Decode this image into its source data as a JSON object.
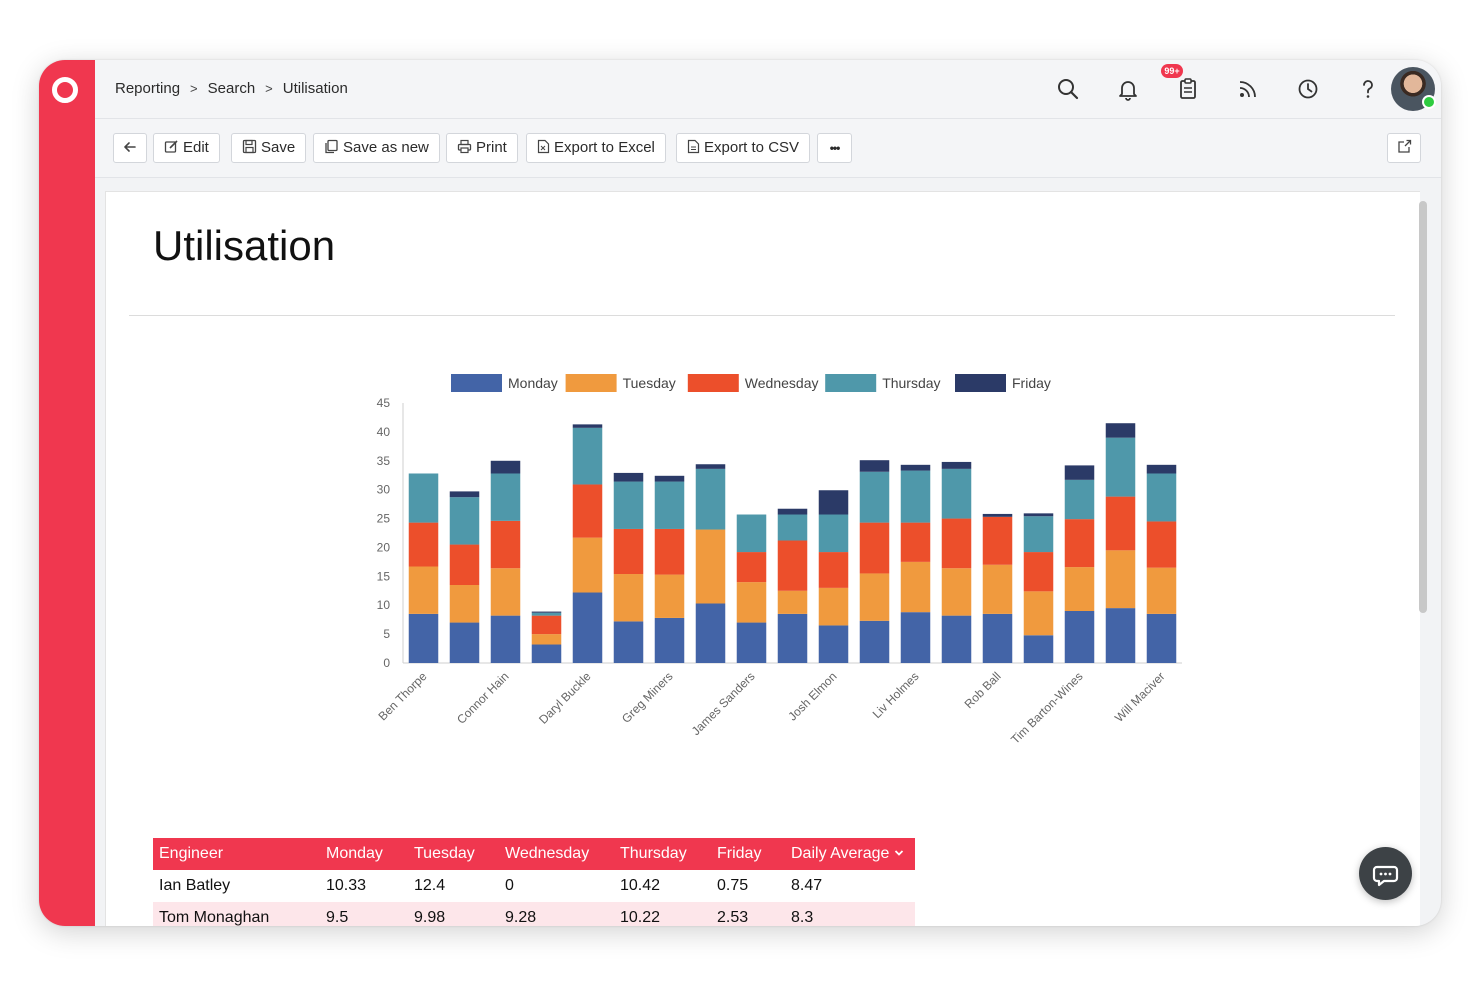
{
  "breadcrumb": {
    "items": [
      "Reporting",
      "Search",
      "Utilisation"
    ],
    "separator": ">"
  },
  "header": {
    "notification_badge": "99+",
    "icons": [
      "search-icon",
      "bell-icon",
      "clipboard-icon",
      "rss-icon",
      "clock-icon",
      "help-icon"
    ]
  },
  "toolbar": {
    "edit": "Edit",
    "save": "Save",
    "save_as_new": "Save as new",
    "print": "Print",
    "export_excel": "Export to Excel",
    "export_csv": "Export to CSV",
    "more": "•••"
  },
  "page": {
    "title": "Utilisation"
  },
  "colors": {
    "brand": "#f0374f",
    "monday": "#4364a7",
    "tuesday": "#f09a3e",
    "wednesday": "#ec4f2b",
    "thursday": "#4f98aa",
    "friday": "#2b3a67"
  },
  "chart_data": {
    "type": "bar",
    "stacked": true,
    "legend_position": "top",
    "ylim": [
      0,
      45
    ],
    "yticks": [
      0,
      5,
      10,
      15,
      20,
      25,
      30,
      35,
      40,
      45
    ],
    "categories": [
      "Ben Thorpe",
      "",
      "Connor Hain",
      "",
      "Daryl Buckle",
      "",
      "Greg Miners",
      "",
      "James Sanders",
      "",
      "Josh Elmon",
      "",
      "Liv Holmes",
      "",
      "Rob Ball",
      "",
      "Tim Barton-Wines",
      "",
      "Will Maciver"
    ],
    "series": [
      {
        "name": "Monday",
        "color": "#4364a7",
        "values": [
          8.5,
          7,
          8.2,
          3.2,
          12.2,
          7.2,
          7.8,
          10.3,
          7,
          8.5,
          6.5,
          7.3,
          8.8,
          8.2,
          8.5,
          4.8,
          9,
          9.5,
          8.5
        ]
      },
      {
        "name": "Tuesday",
        "color": "#f09a3e",
        "values": [
          8.2,
          6.5,
          8.2,
          1.8,
          9.5,
          8.2,
          7.5,
          12.8,
          7,
          4,
          6.5,
          8.2,
          8.7,
          8.2,
          8.5,
          7.6,
          7.6,
          10,
          8
        ]
      },
      {
        "name": "Wednesday",
        "color": "#ec4f2b",
        "values": [
          7.6,
          7,
          8.2,
          3.2,
          9.2,
          7.8,
          7.9,
          0,
          5.2,
          8.7,
          6.2,
          8.8,
          6.8,
          8.6,
          8.3,
          6.8,
          8.3,
          9.3,
          8
        ]
      },
      {
        "name": "Thursday",
        "color": "#4f98aa",
        "values": [
          8.5,
          8.2,
          8.2,
          0.5,
          9.8,
          8.2,
          8.2,
          10.5,
          6.5,
          4.5,
          6.5,
          8.8,
          9,
          8.6,
          0,
          6.2,
          6.8,
          10.2,
          8.3
        ]
      },
      {
        "name": "Friday",
        "color": "#2b3a67",
        "values": [
          0,
          1,
          2.2,
          0.2,
          0.6,
          1.5,
          1,
          0.8,
          0,
          1,
          4.2,
          2,
          1,
          1.2,
          0.5,
          0.5,
          2.5,
          2.5,
          1.5
        ]
      }
    ]
  },
  "table": {
    "columns": [
      "Engineer",
      "Monday",
      "Tuesday",
      "Wednesday",
      "Thursday",
      "Friday",
      "Daily Average"
    ],
    "rows": [
      [
        "Ian Batley",
        "10.33",
        "12.4",
        "0",
        "10.42",
        "0.75",
        "8.47"
      ],
      [
        "Tom Monaghan",
        "9.5",
        "9.98",
        "9.28",
        "10.22",
        "2.53",
        "8.3"
      ]
    ]
  }
}
